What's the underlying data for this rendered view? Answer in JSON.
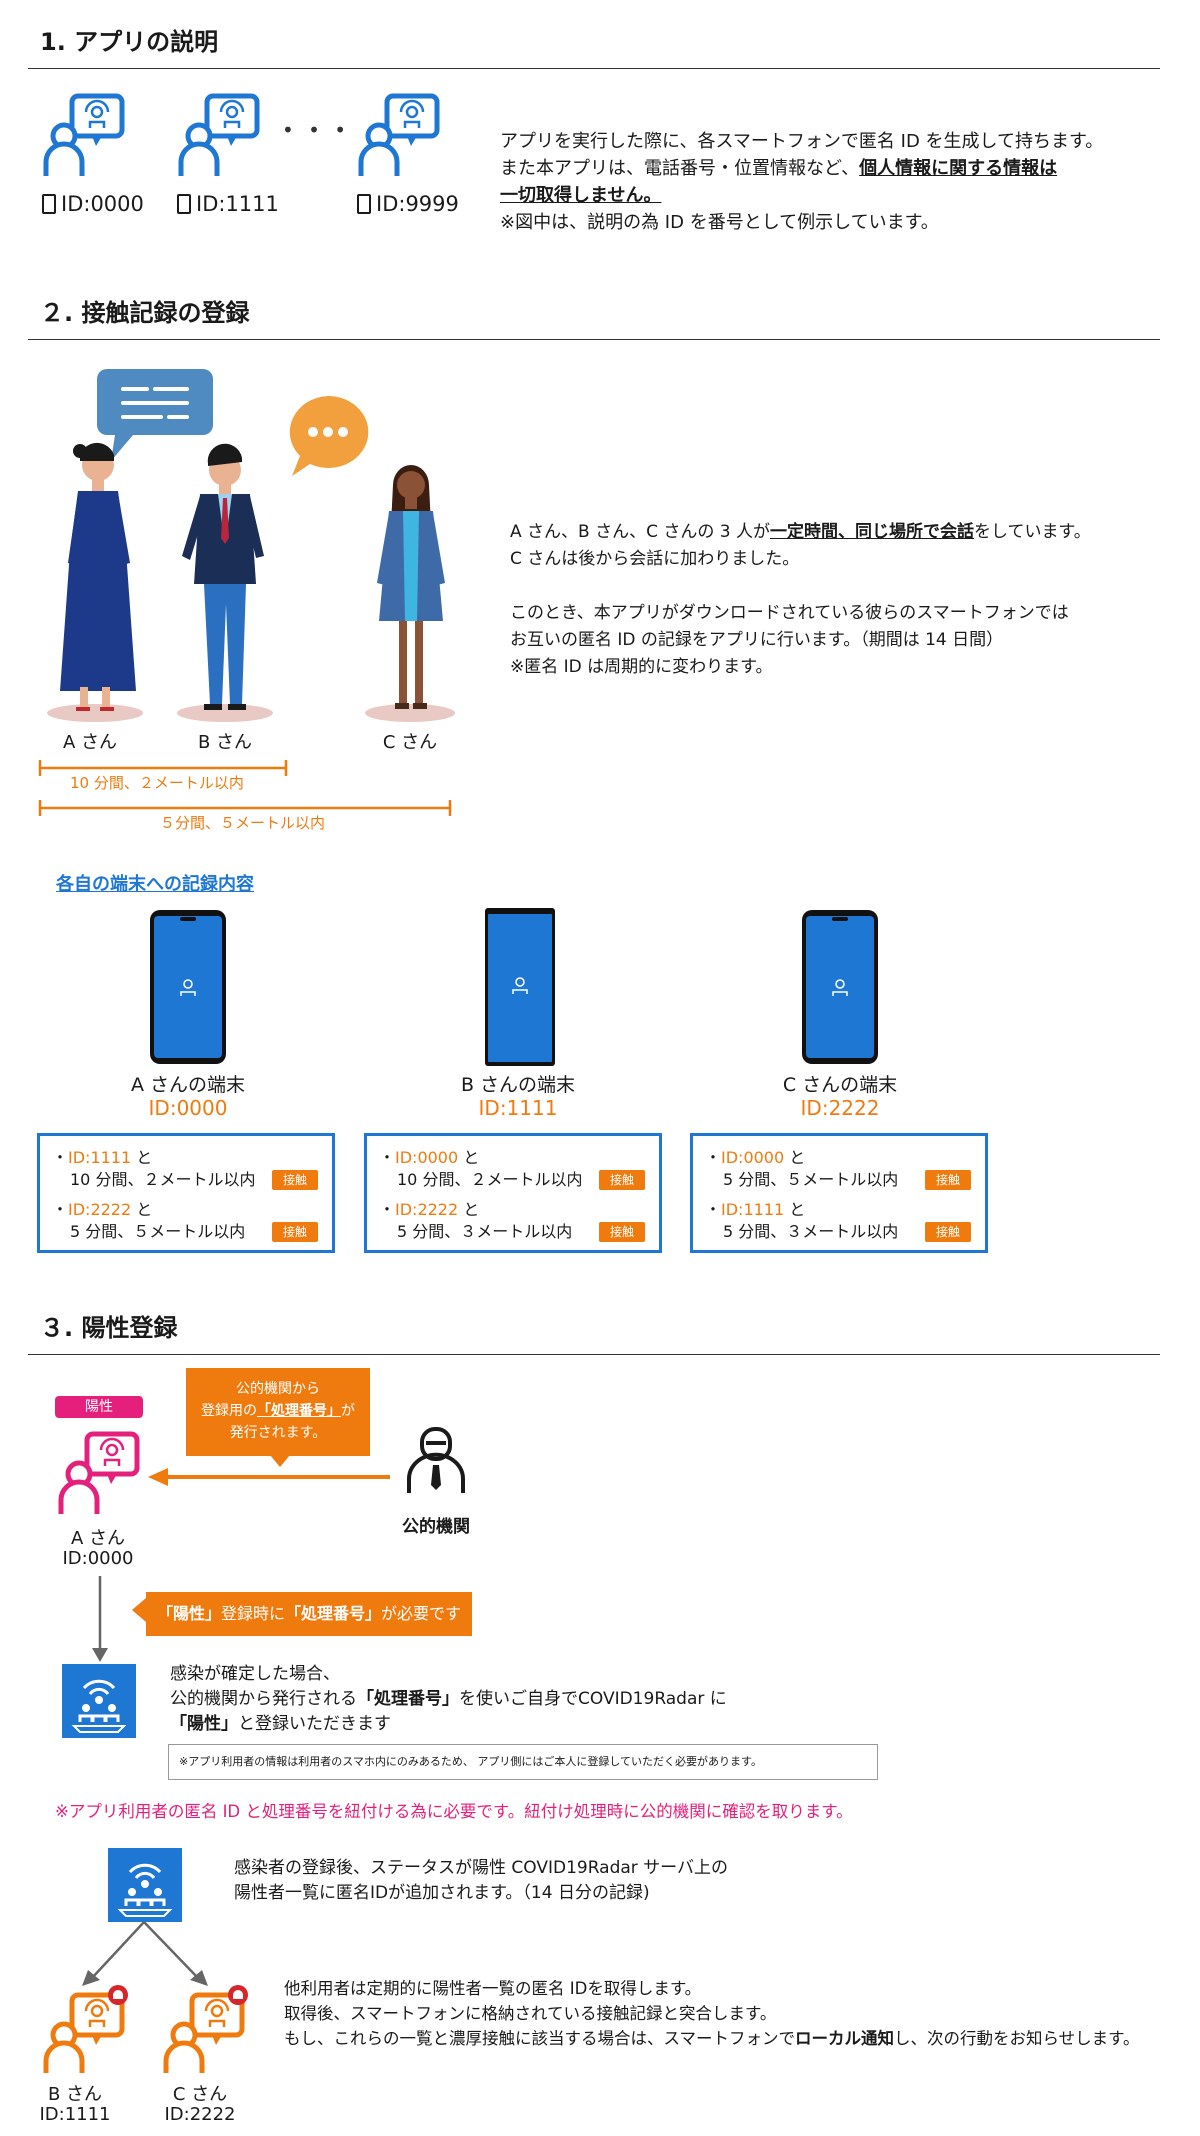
{
  "section1": {
    "title": "1. アプリの説明",
    "ids": [
      "ID:0000",
      "ID:1111",
      "ID:9999"
    ],
    "ellipsis": "• • •",
    "desc_line1": "アプリを実行した際に、各スマートフォンで匿名 ID を生成して持ちます。",
    "desc_line2_plain": "また本アプリは、電話番号・位置情報など、",
    "desc_line2_bold": "個人情報に関する情報は",
    "desc_line3_bold": "一切取得しません。",
    "desc_line4": "※図中は、説明の為 ID を番号として例示しています。"
  },
  "section2": {
    "title": "２. 接触記録の登録",
    "persons": [
      "A さん",
      "B さん",
      "C さん"
    ],
    "range1": "10 分間、２メートル以内",
    "range2": "５分間、５メートル以内",
    "desc_line1_plain_a": "A さん、B さん、C さんの 3 人が",
    "desc_line1_bold": "一定時間、同じ場所で会話",
    "desc_line1_plain_b": "をしています。",
    "desc_line2": "C さんは後から会話に加わりました。",
    "desc_line3": "このとき、本アプリがダウンロードされている彼らのスマートフォンでは",
    "desc_line4": "お互いの匿名 ID の記録をアプリに行います。（期間は 14 日間）",
    "desc_line5": "※匿名 ID は周期的に変わります。",
    "records_heading": "各自の端末への記録内容",
    "tag_label": "接触",
    "devices": [
      {
        "owner": "A さんの端末",
        "id": "ID:0000",
        "records": [
          {
            "id": "ID:1111",
            "suffix": " と",
            "detail": "10 分間、２メートル以内"
          },
          {
            "id": "ID:2222",
            "suffix": " と",
            "detail": "5 分間、５メートル以内"
          }
        ]
      },
      {
        "owner": "B さんの端末",
        "id": "ID:1111",
        "records": [
          {
            "id": "ID:0000",
            "suffix": " と",
            "detail": "10 分間、２メートル以内"
          },
          {
            "id": "ID:2222",
            "suffix": " と",
            "detail": "5 分間、３メートル以内"
          }
        ]
      },
      {
        "owner": "C さんの端末",
        "id": "ID:2222",
        "records": [
          {
            "id": "ID:0000",
            "suffix": " と",
            "detail": "5 分間、５メートル以内"
          },
          {
            "id": "ID:1111",
            "suffix": " と",
            "detail": "5 分間、３メートル以内"
          }
        ]
      }
    ]
  },
  "section3": {
    "title": "３. 陽性登録",
    "positive_badge": "陽性",
    "callout_line1": "公的機関から",
    "callout_line2_plain": "登録用の",
    "callout_line2_bold": "「処理番号」",
    "callout_line2_end": "が",
    "callout_line3": "発行されます。",
    "agency_label": "公的機関",
    "person_a_name": "A さん",
    "person_a_id": "ID:0000",
    "note_bold1": "「陽性」",
    "note_plain1": "登録時に",
    "note_bold2": "「処理番号」",
    "note_plain2": "が必要です",
    "confirm_line1": "感染が確定した場合、",
    "confirm_line2_a": "公的機関から発行される",
    "confirm_line2_bold": "「処理番号」",
    "confirm_line2_b": "を使いご自身でCOVID19Radar に",
    "confirm_line3_bold": "「陽性」",
    "confirm_line3_plain": "と登録いただきます",
    "small_note": "※アプリ利用者の情報は利用者のスマホ内にのみあるため、 アプリ側にはご本人に登録していただく必要があります。",
    "pink_note": "※アプリ利用者の匿名 ID と処理番号を紐付ける為に必要です。紐付け処理時に公的機関に確認を取ります。",
    "server_line1": "感染者の登録後、ステータスが陽性 COVID19Radar サーバ上の",
    "server_line2": "陽性者一覧に匿名IDが追加されます。（14 日分の記録)",
    "final_line1": "他利用者は定期的に陽性者一覧の匿名 IDを取得します。",
    "final_line2": "取得後、スマートフォンに格納されている接触記録と突合します。",
    "final_line3_a": "もし、これらの一覧と濃厚接触に該当する場合は、スマートフォンで",
    "final_line3_bold": "ローカル通知",
    "final_line3_b": "し、次の行動をお知らせします。",
    "b_name": "B さん",
    "b_id": "ID:1111",
    "c_name": "C さん",
    "c_id": "ID:2222"
  },
  "colors": {
    "blue": "#1f77d4",
    "orange": "#ef7b0f",
    "pink": "#e5207c",
    "red": "#d7262b"
  }
}
